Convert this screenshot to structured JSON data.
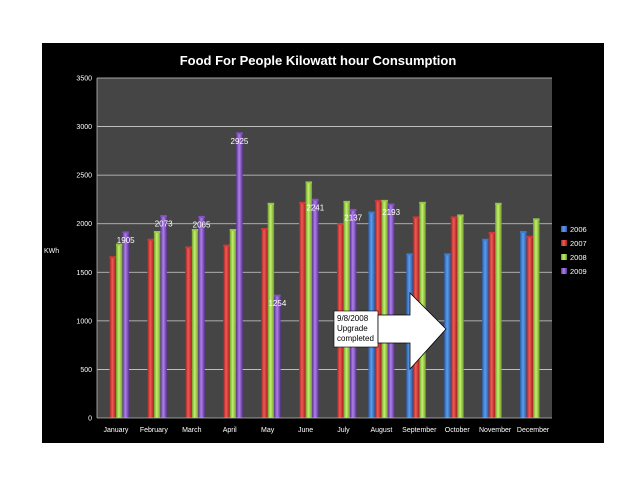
{
  "chart_data": {
    "type": "bar",
    "title": "Food For People Kilowatt hour Consumption",
    "ylabel": "KWh",
    "xlabel": "",
    "ylim": [
      0,
      3500
    ],
    "yticks": [
      0,
      500,
      1000,
      1500,
      2000,
      2500,
      3000,
      3500
    ],
    "grid": true,
    "legend_position": "right",
    "categories": [
      "January",
      "February",
      "March",
      "April",
      "May",
      "June",
      "July",
      "August",
      "September",
      "October",
      "November",
      "December"
    ],
    "series": [
      {
        "name": "2006",
        "color": "#3b7fd4",
        "values": [
          null,
          null,
          null,
          null,
          null,
          null,
          null,
          2110,
          1680,
          1680,
          1830,
          1910
        ]
      },
      {
        "name": "2007",
        "color": "#d83a36",
        "values": [
          1650,
          1830,
          1750,
          1770,
          1940,
          2210,
          1990,
          2230,
          2060,
          2060,
          1900,
          1860
        ]
      },
      {
        "name": "2008",
        "color": "#9ed24a",
        "values": [
          1780,
          1910,
          1930,
          1930,
          2200,
          2420,
          2220,
          2230,
          2210,
          2080,
          2200,
          2040
        ]
      },
      {
        "name": "2009",
        "color": "#8a55c8",
        "values": [
          1905,
          2073,
          2065,
          2925,
          1254,
          2241,
          2137,
          2193,
          null,
          null,
          null,
          null
        ]
      }
    ],
    "data_labels": [
      {
        "series": "2009",
        "category": "January",
        "text": "1905"
      },
      {
        "series": "2009",
        "category": "February",
        "text": "2073"
      },
      {
        "series": "2009",
        "category": "March",
        "text": "2065"
      },
      {
        "series": "2009",
        "category": "April",
        "text": "2925"
      },
      {
        "series": "2009",
        "category": "May",
        "text": "1254"
      },
      {
        "series": "2009",
        "category": "June",
        "text": "2241"
      },
      {
        "series": "2009",
        "category": "July",
        "text": "2137"
      },
      {
        "series": "2009",
        "category": "August",
        "text": "2193"
      }
    ],
    "annotation": {
      "lines": [
        "9/8/2008",
        "Upgrade",
        "completed"
      ],
      "arrow_direction": "right"
    }
  }
}
